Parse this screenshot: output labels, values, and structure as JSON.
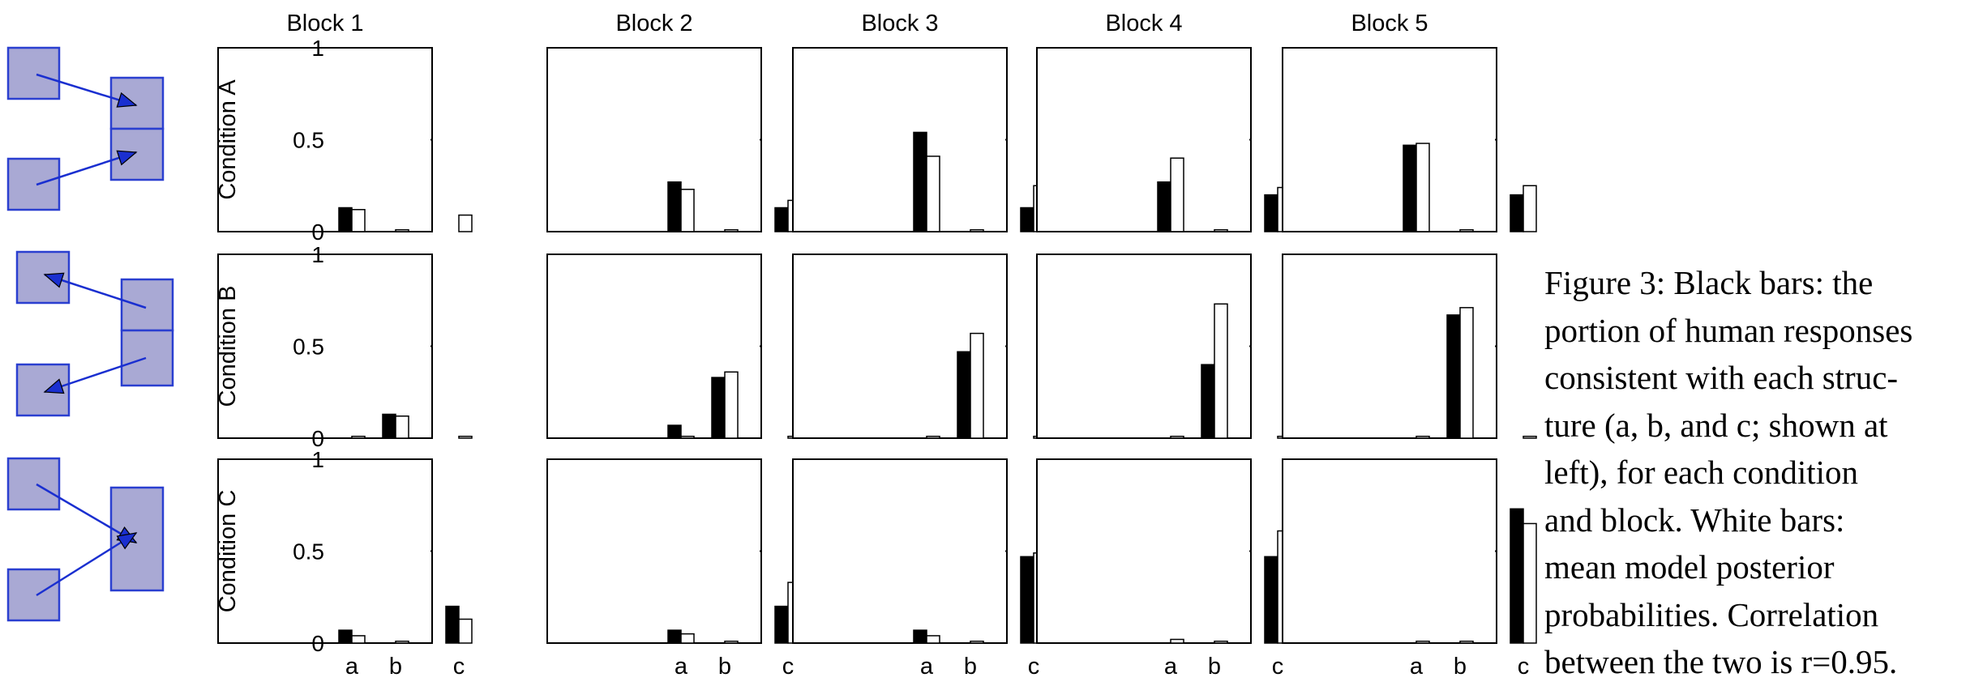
{
  "chart_data": {
    "type": "bar",
    "blocks": [
      "Block 1",
      "Block 2",
      "Block 3",
      "Block 4",
      "Block 5"
    ],
    "conditions": [
      "Condition A",
      "Condition B",
      "Condition C"
    ],
    "categories": [
      "a",
      "b",
      "c"
    ],
    "ylim": [
      0,
      1
    ],
    "yticks": [
      "0",
      "0.5",
      "1"
    ],
    "series_colors": {
      "human": "#000000",
      "model": "#ffffff"
    },
    "panels": [
      [
        {
          "human": [
            0.13,
            0.0,
            0.0
          ],
          "model": [
            0.12,
            0.01,
            0.09
          ]
        },
        {
          "human": [
            0.27,
            0.0,
            0.13
          ],
          "model": [
            0.23,
            0.01,
            0.17
          ]
        },
        {
          "human": [
            0.54,
            0.0,
            0.13
          ],
          "model": [
            0.41,
            0.01,
            0.25
          ]
        },
        {
          "human": [
            0.27,
            0.0,
            0.2
          ],
          "model": [
            0.4,
            0.01,
            0.24
          ]
        },
        {
          "human": [
            0.47,
            0.0,
            0.2
          ],
          "model": [
            0.48,
            0.01,
            0.25
          ]
        }
      ],
      [
        {
          "human": [
            0.0,
            0.13,
            0.0
          ],
          "model": [
            0.01,
            0.12,
            0.01
          ]
        },
        {
          "human": [
            0.07,
            0.33,
            0.0
          ],
          "model": [
            0.01,
            0.36,
            0.01
          ]
        },
        {
          "human": [
            0.0,
            0.47,
            0.0
          ],
          "model": [
            0.01,
            0.57,
            0.01
          ]
        },
        {
          "human": [
            0.0,
            0.4,
            0.0
          ],
          "model": [
            0.01,
            0.73,
            0.01
          ]
        },
        {
          "human": [
            0.0,
            0.67,
            0.0
          ],
          "model": [
            0.01,
            0.71,
            0.01
          ]
        }
      ],
      [
        {
          "human": [
            0.07,
            0.0,
            0.2
          ],
          "model": [
            0.04,
            0.01,
            0.13
          ]
        },
        {
          "human": [
            0.07,
            0.0,
            0.2
          ],
          "model": [
            0.05,
            0.01,
            0.33
          ]
        },
        {
          "human": [
            0.07,
            0.0,
            0.47
          ],
          "model": [
            0.04,
            0.01,
            0.49
          ]
        },
        {
          "human": [
            0.0,
            0.0,
            0.47
          ],
          "model": [
            0.02,
            0.01,
            0.61
          ]
        },
        {
          "human": [
            0.0,
            0.0,
            0.73
          ],
          "model": [
            0.01,
            0.01,
            0.65
          ]
        }
      ]
    ]
  },
  "structure_colors": {
    "box_fill": "#a9a9d4",
    "box_stroke": "#2a3fd0",
    "arrow": "#1a2fd0"
  },
  "caption": {
    "lines": [
      "Figure 3: Black bars: the",
      "portion of human responses",
      "consistent with each struc-",
      "ture (a, b, and c; shown at",
      "left), for each condition",
      "and block. White bars:",
      "mean model posterior",
      "probabilities. Correlation",
      "between the two is r=0.95."
    ]
  }
}
